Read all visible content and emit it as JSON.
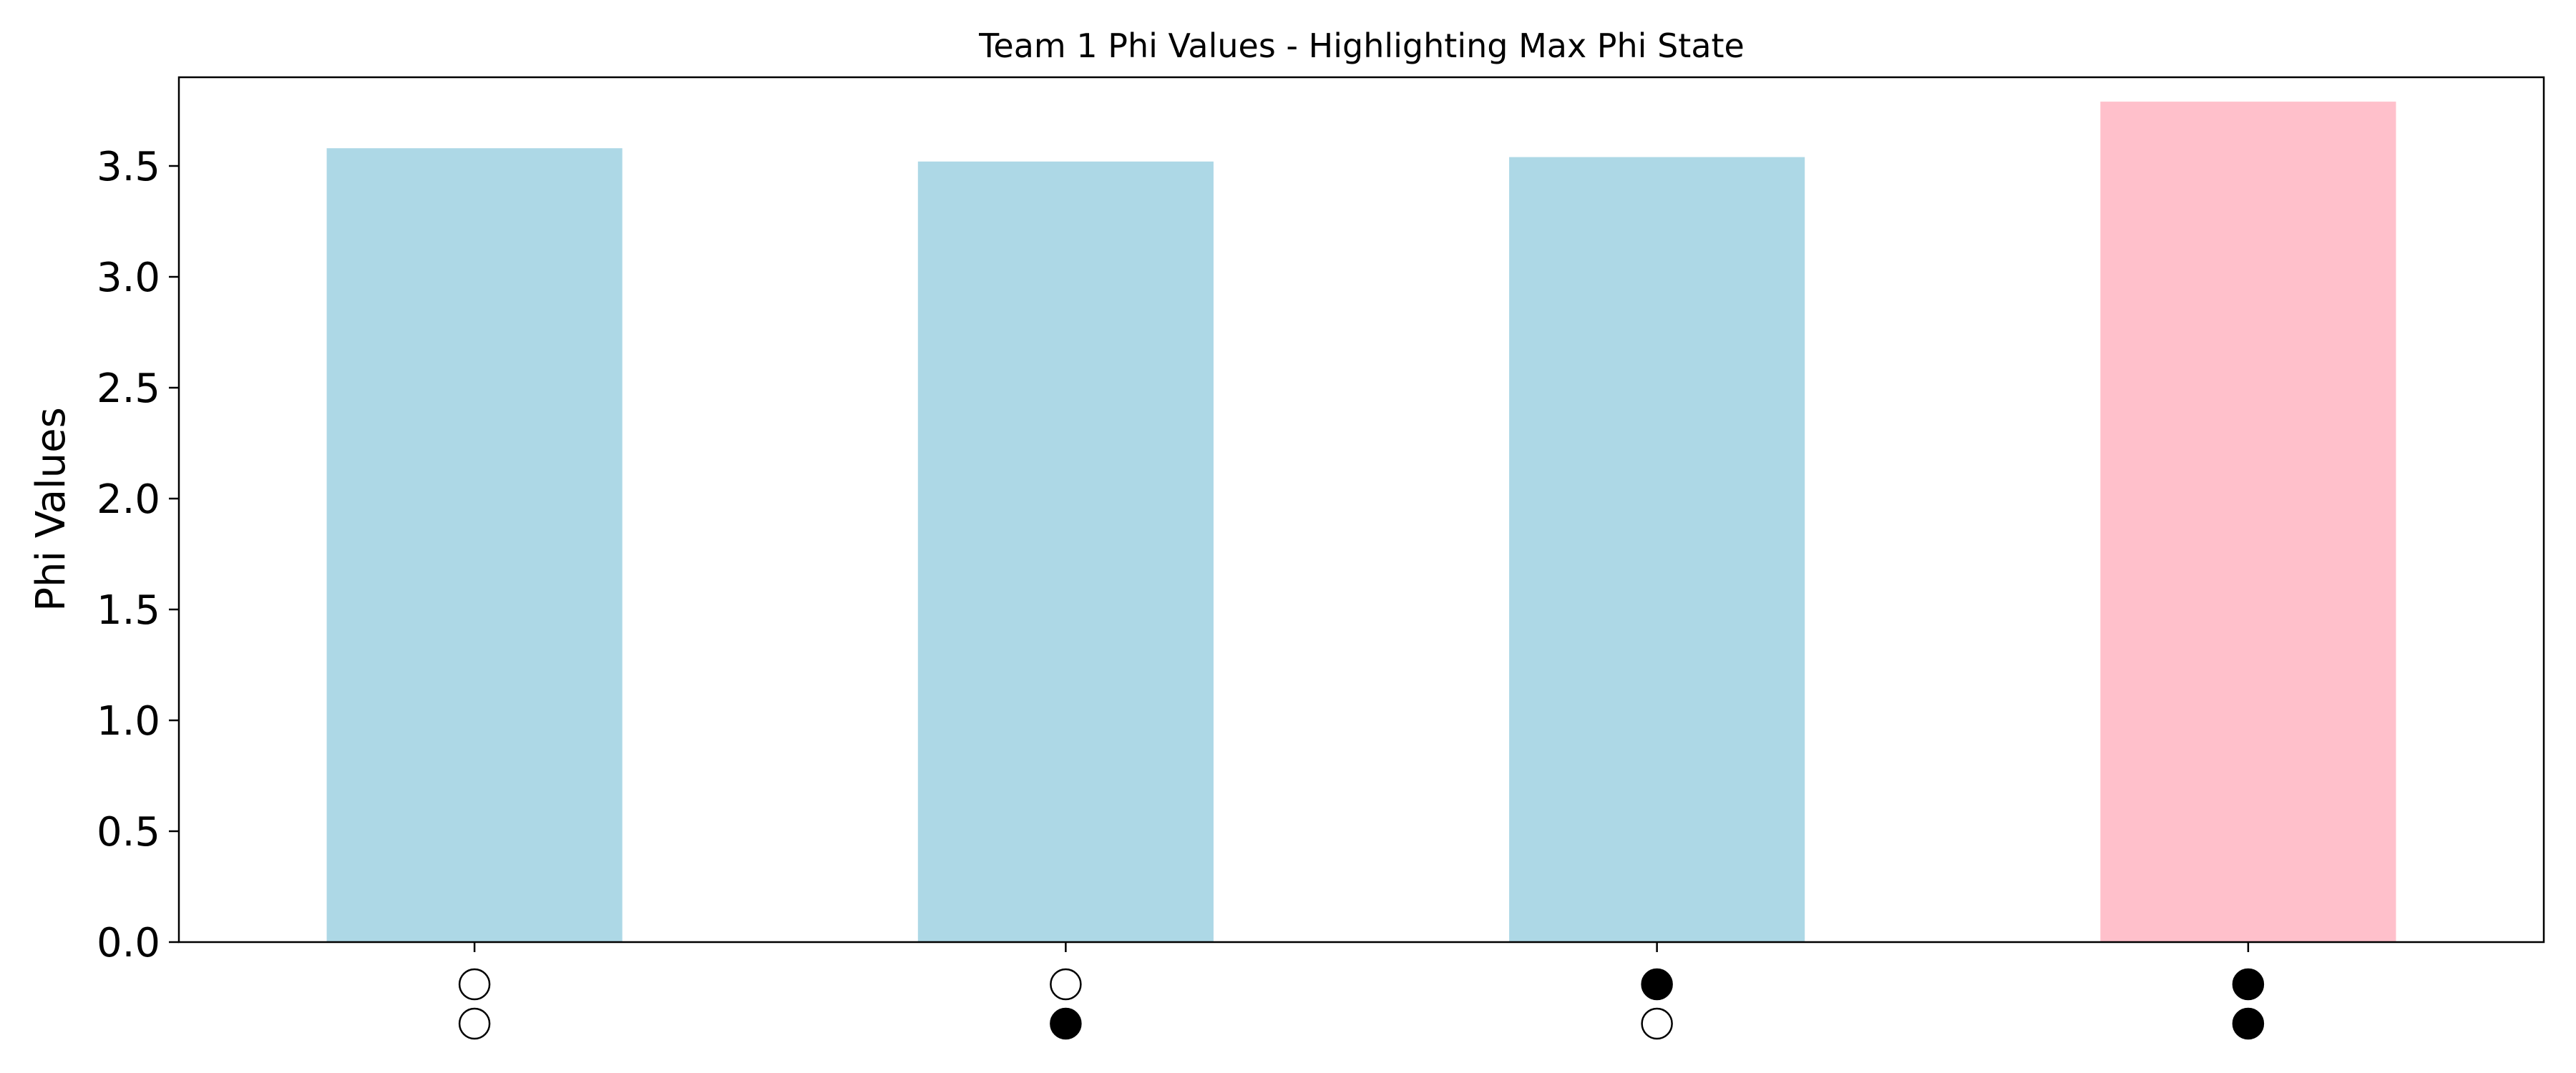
{
  "chart_data": {
    "type": "bar",
    "title": "Team 1 Phi Values - Highlighting Max Phi State",
    "xlabel": "",
    "ylabel": "Phi Values",
    "ylim": [
      0,
      3.9
    ],
    "yticks": [
      "0.0",
      "0.5",
      "1.0",
      "1.5",
      "2.0",
      "2.5",
      "3.0",
      "3.5"
    ],
    "grid": false,
    "categories": [
      {
        "state": [
          0,
          0
        ],
        "value": 3.58
      },
      {
        "state": [
          0,
          1
        ],
        "value": 3.52
      },
      {
        "state": [
          1,
          0
        ],
        "value": 3.54
      },
      {
        "state": [
          1,
          1
        ],
        "value": 3.79
      }
    ],
    "values": [
      3.58,
      3.52,
      3.54,
      3.79
    ],
    "highlight_index": 3,
    "colors": {
      "bar": "#add8e6",
      "highlight": "#ffc0cb",
      "state_on": "#000000",
      "state_off": "#ffffff",
      "axis": "#000000"
    }
  }
}
